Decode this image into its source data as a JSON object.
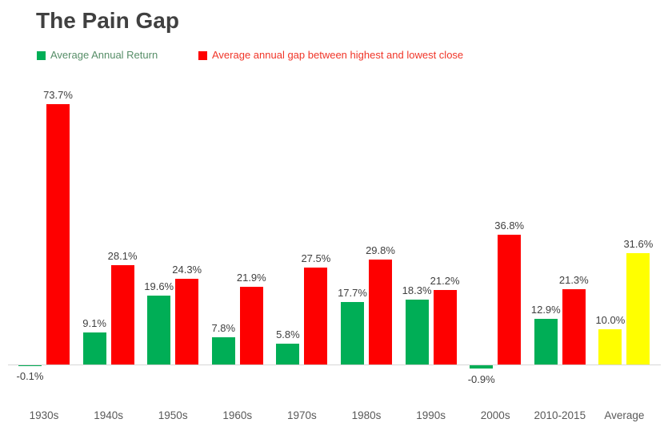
{
  "title": "The Pain Gap",
  "legend": {
    "items": [
      {
        "label": "Average Annual Return",
        "swatch_color": "#00AE56",
        "text_color": "#578e68"
      },
      {
        "label": "Average annual gap between highest and lowest close",
        "swatch_color": "#FE0000",
        "text_color": "#f03528"
      }
    ]
  },
  "colors": {
    "green_series": "#00AE56",
    "red_series": "#FE0000",
    "highlight_yellow": "#FFFF00",
    "title_text": "#404040",
    "value_label_text": "#404040",
    "axis_label_text": "#595959",
    "axis_line": "#d6d6d6"
  },
  "chart_data": {
    "type": "bar",
    "title": "The Pain Gap",
    "xlabel": "",
    "ylabel": "",
    "categories": [
      "1930s",
      "1940s",
      "1950s",
      "1960s",
      "1970s",
      "1980s",
      "1990s",
      "2000s",
      "2010-2015",
      "Average"
    ],
    "series": [
      {
        "name": "Average Annual Return",
        "key": "return",
        "color": "#00AE56",
        "values": [
          -0.1,
          9.1,
          19.6,
          7.8,
          5.8,
          17.7,
          18.3,
          -0.9,
          12.9,
          10.0
        ],
        "labels": [
          "-0.1%",
          "9.1%",
          "19.6%",
          "7.8%",
          "5.8%",
          "17.7%",
          "18.3%",
          "-0.9%",
          "12.9%",
          "10.0%"
        ]
      },
      {
        "name": "Average annual gap between highest and lowest close",
        "key": "gap",
        "color": "#FE0000",
        "values": [
          73.7,
          28.1,
          24.3,
          21.9,
          27.5,
          29.8,
          21.2,
          36.8,
          21.3,
          31.6
        ],
        "labels": [
          "73.7%",
          "28.1%",
          "24.3%",
          "21.9%",
          "27.5%",
          "29.8%",
          "21.2%",
          "36.8%",
          "21.3%",
          "31.6%"
        ]
      }
    ],
    "highlight": {
      "category": "Average",
      "color": "#FFFF00"
    },
    "data_labels": true,
    "grid": false,
    "y_axis_visible": false,
    "ylim": [
      -5,
      80
    ],
    "legend_position": "top-left"
  }
}
